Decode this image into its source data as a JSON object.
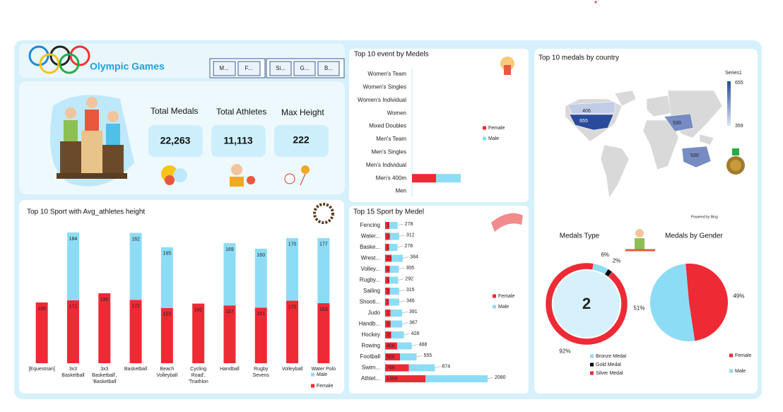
{
  "header": {
    "title": "Olympic Games",
    "slicers": [
      [
        "M...",
        "F..."
      ],
      [
        "Si...",
        "G...",
        "B..."
      ]
    ]
  },
  "kpis": [
    {
      "label": "Total Medals",
      "value": "22,263"
    },
    {
      "label": "Total Athletes",
      "value": "11,113"
    },
    {
      "label": "Max Height",
      "value": "222"
    }
  ],
  "chart_data": [
    {
      "type": "bar",
      "orientation": "vertical",
      "stacked": true,
      "data_labels": true,
      "legend": "bottom-right",
      "title": "Top 10 Sport with Avg_athletes height",
      "categories": [
        "[Equestrian]",
        "3x3 Basketball",
        "3x3 Basketball', 'Basketball",
        "Basketball",
        "Beach Volleyball",
        "Cycling Road', 'Triathlon",
        "Handball",
        "Rugby Sevens",
        "Volleyball",
        "Water Polo"
      ],
      "series": [
        {
          "name": "Female",
          "color": "#ee2a35",
          "values": [
            165,
            171,
            190,
            172,
            150,
            162,
            157,
            151,
            170,
            163
          ]
        },
        {
          "name": "Male",
          "color": "#8ddcf6",
          "values": [
            null,
            184,
            null,
            182,
            165,
            null,
            169,
            160,
            170,
            177
          ]
        }
      ]
    },
    {
      "type": "bar",
      "orientation": "horizontal",
      "stacked": true,
      "data_labels": false,
      "legend": "right",
      "title": "Top 10 event by Medels",
      "categories": [
        "Women's Team",
        "Women's Singles",
        "Women's Individual",
        "Women",
        "Mixed Doubles",
        "Men's Team",
        "Men's Singles",
        "Men's Individual",
        "Men's 400m",
        "Men"
      ],
      "series": [
        {
          "name": "Female",
          "color": "#ee2a35",
          "values": [
            0,
            0,
            0,
            0,
            0,
            0,
            0,
            0,
            34,
            0
          ]
        },
        {
          "name": "Male",
          "color": "#8ddcf6",
          "values": [
            0,
            0,
            0,
            0,
            0,
            0,
            0,
            0,
            35,
            0
          ]
        }
      ]
    },
    {
      "type": "bar",
      "orientation": "horizontal",
      "stacked": true,
      "data_labels": true,
      "legend": "right",
      "title": "Top 15 Sport by Medel",
      "categories": [
        "Fencing",
        "Water...",
        "Baske...",
        "Wrest...",
        "Volley...",
        "Rugby...",
        "Sailing",
        "Shooti...",
        "Judo",
        "Handb...",
        "Hockey",
        "Rowing",
        "Football",
        "Swim...",
        "Athlet..."
      ],
      "series": [
        {
          "name": "Female",
          "color": "#ee2a35",
          "values": [
            142,
            160,
            136,
            213,
            156,
            142,
            156,
            128,
            178,
            184,
            202,
            406,
            500,
            796,
            1358
          ]
        },
        {
          "name": "Male",
          "color": "#8ddcf6",
          "values": [
            278,
            312,
            278,
            384,
            305,
            292,
            315,
            346,
            391,
            387,
            428,
            488,
            555,
            874,
            2080
          ]
        }
      ]
    },
    {
      "type": "map",
      "title": "Top 10 medals by country",
      "values": [
        406,
        655,
        530,
        530
      ],
      "legend_title": "Series1",
      "legend_range": [
        359,
        655
      ],
      "credit": "Powered by Bing"
    },
    {
      "type": "donut",
      "title": "Medals Type",
      "center_label": "2",
      "categories": [
        "Bronze Medal",
        "Gold Medal",
        "Silver Medal"
      ],
      "values": [
        6,
        2,
        92
      ],
      "value_labels": [
        "6%",
        "2%",
        "92%"
      ],
      "colors": [
        "#8ddcf6",
        "#000000",
        "#ee2a35"
      ]
    },
    {
      "type": "pie",
      "title": "Medals by Gender",
      "categories": [
        "Female",
        "Male"
      ],
      "values": [
        49,
        51
      ],
      "value_labels": [
        "49%",
        "51%"
      ],
      "colors": [
        "#ee2a35",
        "#8ddcf6"
      ]
    }
  ]
}
